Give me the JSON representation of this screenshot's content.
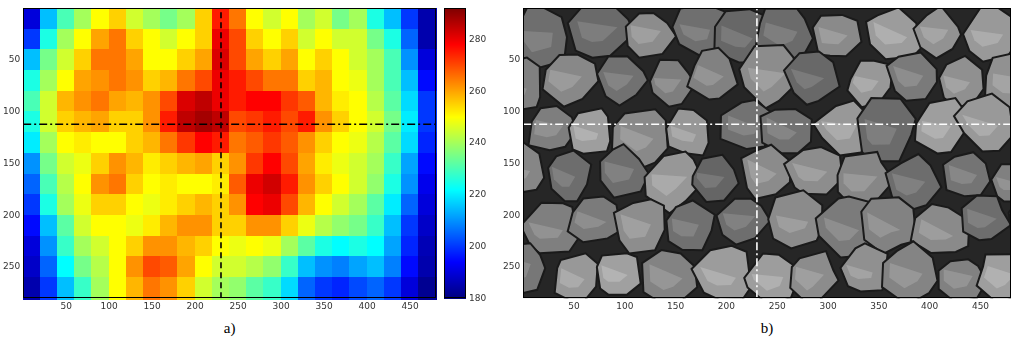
{
  "chart_data": [
    {
      "type": "heatmap",
      "title": "a)",
      "grid": false,
      "xlim": [
        0,
        480
      ],
      "ylim": [
        280,
        0
      ],
      "xticks": [
        50,
        100,
        150,
        200,
        250,
        300,
        350,
        400,
        450
      ],
      "yticks": [
        50,
        100,
        150,
        200,
        250
      ],
      "cells": [
        [
          190,
          215,
          230,
          240,
          250,
          255,
          245,
          240,
          235,
          240,
          255,
          275,
          265,
          250,
          245,
          250,
          240,
          245,
          235,
          240,
          225,
          215,
          200,
          185
        ],
        [
          200,
          225,
          240,
          250,
          260,
          265,
          255,
          250,
          245,
          250,
          255,
          280,
          270,
          255,
          250,
          255,
          245,
          250,
          245,
          245,
          235,
          225,
          205,
          185
        ],
        [
          215,
          235,
          245,
          255,
          265,
          265,
          260,
          250,
          250,
          255,
          260,
          282,
          270,
          260,
          255,
          260,
          250,
          255,
          250,
          245,
          240,
          230,
          210,
          190
        ],
        [
          225,
          240,
          250,
          260,
          262,
          265,
          262,
          255,
          258,
          265,
          270,
          280,
          275,
          270,
          265,
          265,
          255,
          258,
          250,
          248,
          240,
          230,
          215,
          195
        ],
        [
          230,
          245,
          258,
          262,
          265,
          260,
          258,
          262,
          270,
          282,
          285,
          280,
          275,
          278,
          278,
          272,
          268,
          258,
          252,
          250,
          242,
          232,
          218,
          200
        ],
        [
          225,
          245,
          255,
          258,
          260,
          255,
          255,
          262,
          275,
          285,
          288,
          285,
          270,
          272,
          275,
          270,
          275,
          262,
          255,
          250,
          245,
          235,
          220,
          200
        ],
        [
          220,
          240,
          250,
          252,
          250,
          250,
          255,
          258,
          265,
          272,
          278,
          275,
          265,
          268,
          272,
          268,
          262,
          255,
          250,
          248,
          242,
          232,
          218,
          198
        ],
        [
          210,
          235,
          245,
          248,
          255,
          262,
          258,
          252,
          255,
          258,
          260,
          255,
          262,
          272,
          278,
          270,
          260,
          252,
          248,
          245,
          240,
          228,
          212,
          195
        ],
        [
          205,
          230,
          242,
          250,
          262,
          265,
          255,
          250,
          252,
          250,
          250,
          252,
          268,
          280,
          283,
          275,
          262,
          255,
          250,
          245,
          238,
          225,
          210,
          192
        ],
        [
          200,
          225,
          240,
          248,
          255,
          255,
          250,
          248,
          252,
          255,
          258,
          255,
          262,
          278,
          280,
          270,
          258,
          250,
          245,
          240,
          232,
          220,
          205,
          190
        ],
        [
          195,
          215,
          232,
          245,
          250,
          250,
          248,
          252,
          258,
          262,
          262,
          255,
          255,
          262,
          262,
          255,
          248,
          242,
          238,
          235,
          228,
          215,
          200,
          188
        ],
        [
          190,
          210,
          228,
          240,
          245,
          250,
          255,
          262,
          262,
          258,
          255,
          250,
          248,
          250,
          248,
          240,
          232,
          225,
          222,
          225,
          222,
          212,
          198,
          186
        ],
        [
          188,
          205,
          222,
          235,
          242,
          250,
          262,
          270,
          268,
          260,
          250,
          245,
          245,
          242,
          238,
          228,
          215,
          210,
          208,
          212,
          215,
          208,
          195,
          185
        ],
        [
          185,
          200,
          215,
          228,
          240,
          250,
          258,
          265,
          262,
          255,
          245,
          240,
          238,
          232,
          228,
          218,
          205,
          200,
          198,
          202,
          205,
          200,
          190,
          182
        ]
      ],
      "colorbar": {
        "range": [
          180,
          292
        ],
        "ticks": [
          180,
          200,
          220,
          240,
          260,
          280
        ]
      },
      "lines": [
        {
          "x": 230,
          "line_style": "dashed",
          "color": "#000000"
        },
        {
          "y": 112,
          "line_style": "dashdot",
          "color": "#000000"
        }
      ]
    },
    {
      "type": "image",
      "title": "b)",
      "grid": false,
      "xlim": [
        0,
        480
      ],
      "ylim": [
        280,
        0
      ],
      "xticks": [
        50,
        100,
        150,
        200,
        250,
        300,
        350,
        400,
        450
      ],
      "yticks": [
        50,
        100,
        150,
        200,
        250
      ],
      "lines": [
        {
          "x": 230,
          "line_style": "dashdot",
          "color": "#ffffff"
        },
        {
          "y": 112,
          "line_style": "dashdot",
          "color": "#ffffff"
        }
      ]
    }
  ]
}
